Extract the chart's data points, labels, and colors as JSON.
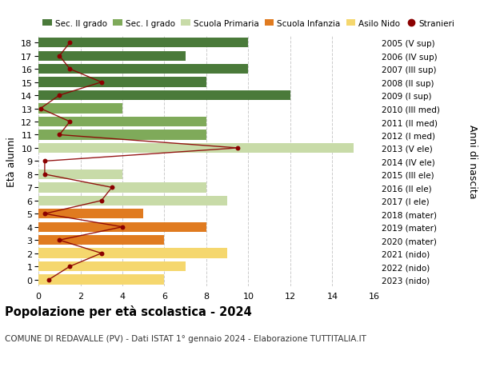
{
  "ages": [
    0,
    1,
    2,
    3,
    4,
    5,
    6,
    7,
    8,
    9,
    10,
    11,
    12,
    13,
    14,
    15,
    16,
    17,
    18
  ],
  "right_labels": [
    "2023 (nido)",
    "2022 (nido)",
    "2021 (nido)",
    "2020 (mater)",
    "2019 (mater)",
    "2018 (mater)",
    "2017 (I ele)",
    "2016 (II ele)",
    "2015 (III ele)",
    "2014 (IV ele)",
    "2013 (V ele)",
    "2012 (I med)",
    "2011 (II med)",
    "2010 (III med)",
    "2009 (I sup)",
    "2008 (II sup)",
    "2007 (III sup)",
    "2006 (IV sup)",
    "2005 (V sup)"
  ],
  "bar_values": [
    6,
    7,
    9,
    6,
    8,
    5,
    9,
    8,
    4,
    0,
    15,
    8,
    8,
    4,
    12,
    8,
    10,
    7,
    10
  ],
  "bar_colors": [
    "#f5d76e",
    "#f5d76e",
    "#f5d76e",
    "#e07b20",
    "#e07b20",
    "#e07b20",
    "#c8dba8",
    "#c8dba8",
    "#c8dba8",
    "#c8dba8",
    "#c8dba8",
    "#7faa5a",
    "#7faa5a",
    "#7faa5a",
    "#4a7a3a",
    "#4a7a3a",
    "#4a7a3a",
    "#4a7a3a",
    "#4a7a3a"
  ],
  "stranieri_values": [
    0.5,
    1.5,
    3,
    1,
    4,
    0.3,
    3,
    3.5,
    0.3,
    0.3,
    9.5,
    1,
    1.5,
    0.1,
    1,
    3,
    1.5,
    1,
    1.5
  ],
  "legend_labels": [
    "Sec. II grado",
    "Sec. I grado",
    "Scuola Primaria",
    "Scuola Infanzia",
    "Asilo Nido",
    "Stranieri"
  ],
  "legend_colors": [
    "#4a7a3a",
    "#7faa5a",
    "#c8dba8",
    "#e07b20",
    "#f5d76e",
    "#8b0000"
  ],
  "title": "Popolazione per età scolastica - 2024",
  "subtitle": "COMUNE DI REDAVALLE (PV) - Dati ISTAT 1° gennaio 2024 - Elaborazione TUTTITALIA.IT",
  "ylabel_left": "Età alunni",
  "ylabel_right": "Anni di nascita",
  "xlim": [
    0,
    16
  ],
  "xticks": [
    0,
    2,
    4,
    6,
    8,
    10,
    12,
    14,
    16
  ],
  "background_color": "#ffffff",
  "grid_color": "#cccccc"
}
